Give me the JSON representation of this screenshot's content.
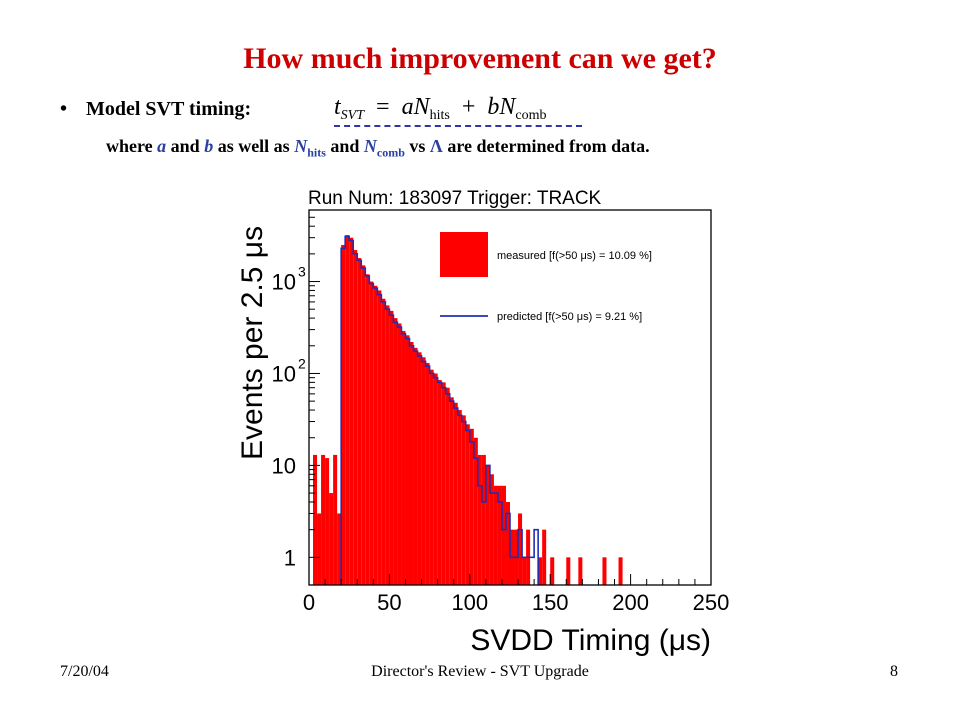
{
  "slide": {
    "title": "How much improvement  can we get?",
    "bullet_label": "Model SVT timing:",
    "bullet_symbol": "•",
    "formula": {
      "lhs": "t",
      "lhs_sub": "SVT",
      "equals": "=",
      "a": "a",
      "N1": "N",
      "N1_sub": "hits",
      "plus": "+",
      "b": "b",
      "N2": "N",
      "N2_sub": "comb"
    },
    "subline": {
      "t1": "where ",
      "a": "a",
      "t2": " and ",
      "b": "b",
      "t3": " as well as ",
      "N1": "N",
      "N1_sub": "hits",
      "t4": " and ",
      "N2": "N",
      "N2_sub": "comb",
      "t5": " vs ",
      "lambda": "Λ",
      "t6": " are determined from data."
    }
  },
  "footer": {
    "date": "7/20/04",
    "center": "Director's Review - SVT Upgrade",
    "page": "8"
  },
  "colors": {
    "title": "#cc0000",
    "measured": "#ff0000",
    "predicted": "#1f2fb5",
    "accent_text": "#2a3f9f"
  },
  "chart_data": {
    "type": "bar",
    "title": "Run Num: 183097    Trigger: TRACK",
    "xlabel": "SVDD Timing (μs)",
    "ylabel": "Events per 2.5 μs",
    "xlim": [
      0,
      250
    ],
    "ylim": [
      0.5,
      6000
    ],
    "yscale": "log",
    "bin_width": 2.5,
    "x_ticks": [
      "0",
      "50",
      "100",
      "150",
      "200",
      "250"
    ],
    "y_ticks": [
      {
        "value": 1,
        "label": "1"
      },
      {
        "value": 10,
        "label": "10"
      },
      {
        "value": 100,
        "label": "10",
        "sup": "2"
      },
      {
        "value": 1000,
        "label": "10",
        "sup": "3"
      }
    ],
    "legend_position": "top-right",
    "series": [
      {
        "name": "measured [f(>50 μs) = 10.09 %]",
        "style": "filled",
        "bins": [
          [
            2.5,
            13
          ],
          [
            5,
            3
          ],
          [
            7.5,
            13
          ],
          [
            10,
            12
          ],
          [
            12.5,
            5
          ],
          [
            15,
            13
          ],
          [
            17.5,
            3
          ],
          [
            20,
            2500
          ],
          [
            22.5,
            3200
          ],
          [
            25,
            3000
          ],
          [
            27.5,
            2200
          ],
          [
            30,
            1800
          ],
          [
            32.5,
            1500
          ],
          [
            35,
            1200
          ],
          [
            37.5,
            1000
          ],
          [
            40,
            900
          ],
          [
            42.5,
            800
          ],
          [
            45,
            650
          ],
          [
            47.5,
            550
          ],
          [
            50,
            480
          ],
          [
            52.5,
            400
          ],
          [
            55,
            350
          ],
          [
            57.5,
            290
          ],
          [
            60,
            260
          ],
          [
            62.5,
            220
          ],
          [
            65,
            190
          ],
          [
            67.5,
            170
          ],
          [
            70,
            150
          ],
          [
            72.5,
            130
          ],
          [
            75,
            110
          ],
          [
            77.5,
            100
          ],
          [
            80,
            85
          ],
          [
            82.5,
            80
          ],
          [
            85,
            70
          ],
          [
            87.5,
            55
          ],
          [
            90,
            48
          ],
          [
            92.5,
            40
          ],
          [
            95,
            35
          ],
          [
            97.5,
            28
          ],
          [
            100,
            25
          ],
          [
            102.5,
            20
          ],
          [
            105,
            13
          ],
          [
            107.5,
            13
          ],
          [
            110,
            10
          ],
          [
            112.5,
            8
          ],
          [
            115,
            6
          ],
          [
            117.5,
            6
          ],
          [
            120,
            6
          ],
          [
            122.5,
            4
          ],
          [
            125,
            2
          ],
          [
            127.5,
            2
          ],
          [
            130,
            3
          ],
          [
            132.5,
            1
          ],
          [
            135,
            2
          ],
          [
            142.5,
            1
          ],
          [
            145,
            2
          ],
          [
            150,
            1
          ],
          [
            160,
            1
          ],
          [
            167.5,
            1
          ],
          [
            182.5,
            1
          ],
          [
            192.5,
            1
          ]
        ]
      },
      {
        "name": "predicted [f(>50 μs) = 9.21 %]",
        "style": "step",
        "bins": [
          [
            20,
            2300
          ],
          [
            22.5,
            3100
          ],
          [
            25,
            2800
          ],
          [
            27.5,
            2000
          ],
          [
            30,
            1700
          ],
          [
            32.5,
            1400
          ],
          [
            35,
            1150
          ],
          [
            37.5,
            950
          ],
          [
            40,
            850
          ],
          [
            42.5,
            720
          ],
          [
            45,
            600
          ],
          [
            47.5,
            500
          ],
          [
            50,
            430
          ],
          [
            52.5,
            360
          ],
          [
            55,
            320
          ],
          [
            57.5,
            270
          ],
          [
            60,
            240
          ],
          [
            62.5,
            200
          ],
          [
            65,
            175
          ],
          [
            67.5,
            155
          ],
          [
            70,
            135
          ],
          [
            72.5,
            120
          ],
          [
            75,
            100
          ],
          [
            77.5,
            90
          ],
          [
            80,
            80
          ],
          [
            82.5,
            70
          ],
          [
            85,
            60
          ],
          [
            87.5,
            50
          ],
          [
            90,
            42
          ],
          [
            92.5,
            35
          ],
          [
            95,
            30
          ],
          [
            97.5,
            24
          ],
          [
            100,
            18
          ],
          [
            102.5,
            12
          ],
          [
            105,
            6
          ],
          [
            107.5,
            4
          ],
          [
            110,
            10
          ],
          [
            112.5,
            5
          ],
          [
            115,
            5
          ],
          [
            117.5,
            4
          ],
          [
            120,
            2
          ],
          [
            122.5,
            3
          ],
          [
            125,
            1
          ],
          [
            127.5,
            1
          ],
          [
            130,
            2
          ],
          [
            132.5,
            1
          ],
          [
            135,
            1
          ],
          [
            137.5,
            1
          ],
          [
            140,
            2
          ]
        ]
      }
    ]
  }
}
